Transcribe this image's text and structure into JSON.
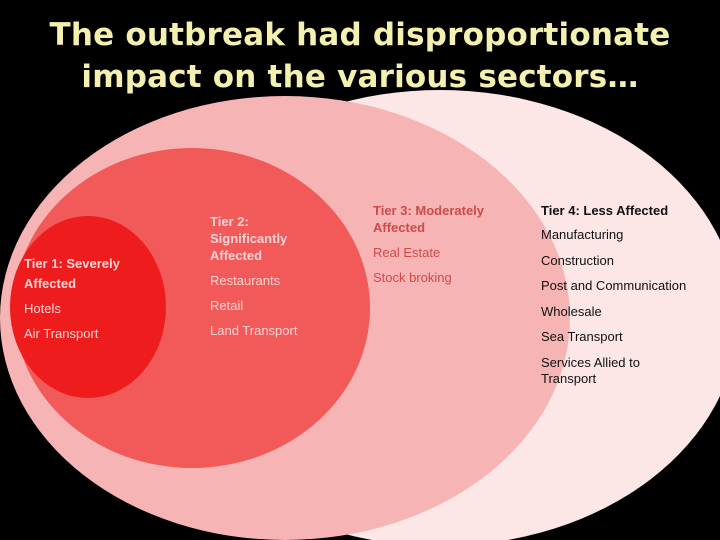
{
  "title": {
    "line1": "The outbreak had disproportionate",
    "line2": "impact on the various sectors…"
  },
  "colors": {
    "tier1_fill": "#ee1c1c",
    "tier2_fill": "#f25a5a",
    "tier3_fill": "#f7b4b4",
    "tier4_fill": "#fde6e6",
    "tier1_text": "#ffd7d7",
    "tier2_text": "#ffd3d3",
    "tier3_text": "#cc4c4c",
    "tier4_text": "#111111"
  },
  "tiers": [
    {
      "heading": "Tier 1: Severely Affected",
      "items": [
        "Hotels",
        "Air Transport"
      ]
    },
    {
      "heading": "Tier 2: Significantly Affected",
      "items": [
        "Restaurants",
        "Retail",
        "Land Transport"
      ]
    },
    {
      "heading": "Tier 3: Moderately Affected",
      "items": [
        "Real Estate",
        "Stock broking"
      ]
    },
    {
      "heading": "Tier 4: Less Affected",
      "items": [
        "Manufacturing",
        "Construction",
        "Post and Communication",
        "Wholesale",
        "Sea Transport",
        "Services Allied to Transport"
      ]
    }
  ]
}
